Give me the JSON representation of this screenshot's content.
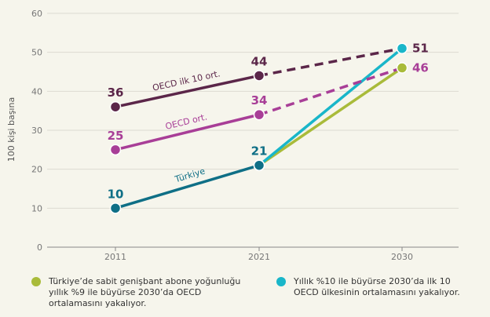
{
  "chart_data": {
    "type": "line",
    "ylabel": "100 kişi başına",
    "ylim": [
      0,
      60
    ],
    "yticks": [
      0,
      10,
      20,
      30,
      40,
      50,
      60
    ],
    "xticks": [
      "2011",
      "2021",
      "2030"
    ],
    "grid": true,
    "series": [
      {
        "name": "OECD ilk 10 ort.",
        "color": "#5b2649",
        "points": [
          {
            "x": "2011",
            "y": 36,
            "label": "36"
          },
          {
            "x": "2021",
            "y": 44,
            "label": "44"
          },
          {
            "x": "2030",
            "y": 51
          }
        ],
        "projected_from": "2021"
      },
      {
        "name": "OECD ort.",
        "color": "#a83e97",
        "points": [
          {
            "x": "2011",
            "y": 25,
            "label": "25"
          },
          {
            "x": "2021",
            "y": 34,
            "label": "34"
          },
          {
            "x": "2030",
            "y": 46
          }
        ],
        "projected_from": "2021"
      },
      {
        "name": "Türkiye",
        "color": "#0f6f86",
        "points": [
          {
            "x": "2011",
            "y": 10,
            "label": "10"
          },
          {
            "x": "2021",
            "y": 21,
            "label": "21"
          }
        ]
      }
    ],
    "scenarios": [
      {
        "color": "#a9bb3a",
        "from": {
          "x": "2021",
          "y": 21
        },
        "to": {
          "x": "2030",
          "y": 46,
          "label": "46"
        },
        "legend": "Türkiye’de sabit genişbant abone yoğunluğu\nyıllık %9 ile büyürse 2030’da OECD\nortalamasını yakalıyor."
      },
      {
        "color": "#19b6c9",
        "from": {
          "x": "2021",
          "y": 21
        },
        "to": {
          "x": "2030",
          "y": 51,
          "label": "51"
        },
        "legend": "Yıllık %10 ile büyürse 2030’da ilk 10\nOECD ülkesinin ortalamasını yakalıyor."
      }
    ]
  }
}
